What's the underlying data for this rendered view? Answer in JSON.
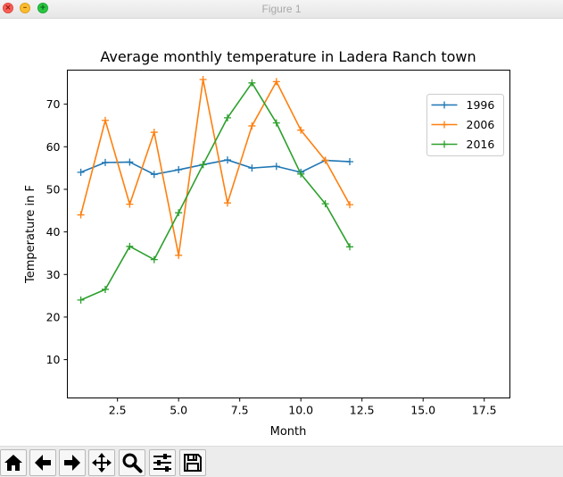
{
  "window": {
    "title": "Figure 1",
    "close_glyph": "×",
    "minimize_glyph": "–",
    "maximize_glyph": "+"
  },
  "toolbar": {
    "buttons": [
      {
        "icon": "home-icon"
      },
      {
        "icon": "back-arrow-icon"
      },
      {
        "icon": "forward-arrow-icon"
      },
      {
        "icon": "pan-icon"
      },
      {
        "icon": "zoom-icon"
      },
      {
        "icon": "subplots-icon"
      },
      {
        "icon": "save-icon"
      }
    ]
  },
  "chart_data": {
    "type": "line",
    "title": "Average monthly temperature in Ladera Ranch town",
    "xlabel": "Month",
    "ylabel": "Temperature in F",
    "xlim": [
      0.45,
      18.55
    ],
    "ylim": [
      1.0,
      78.0
    ],
    "xticks": [
      2.5,
      5.0,
      7.5,
      10.0,
      12.5,
      15.0,
      17.5
    ],
    "xtick_labels": [
      "2.5",
      "5.0",
      "7.5",
      "10.0",
      "12.5",
      "15.0",
      "17.5"
    ],
    "yticks": [
      10,
      20,
      30,
      40,
      50,
      60,
      70
    ],
    "ytick_labels": [
      "10",
      "20",
      "30",
      "40",
      "50",
      "60",
      "70"
    ],
    "grid": false,
    "legend_position": "top-right",
    "marker": "+",
    "x": [
      1,
      2,
      3,
      4,
      5,
      6,
      7,
      8,
      9,
      10,
      11,
      12
    ],
    "series": [
      {
        "name": "1996",
        "color": "#1f77b4",
        "values": [
          54.0,
          56.3,
          56.4,
          53.5,
          54.6,
          55.8,
          56.9,
          55.0,
          55.4,
          54.0,
          56.8,
          56.5
        ]
      },
      {
        "name": "2006",
        "color": "#ff7f0e",
        "values": [
          44.0,
          66.2,
          46.5,
          63.4,
          34.5,
          75.8,
          46.8,
          64.9,
          75.3,
          63.9,
          56.8,
          46.4
        ]
      },
      {
        "name": "2016",
        "color": "#2ca02c",
        "values": [
          24.0,
          26.5,
          36.6,
          33.5,
          44.5,
          55.8,
          66.8,
          75.0,
          65.6,
          53.6,
          46.6,
          36.5
        ]
      }
    ]
  }
}
